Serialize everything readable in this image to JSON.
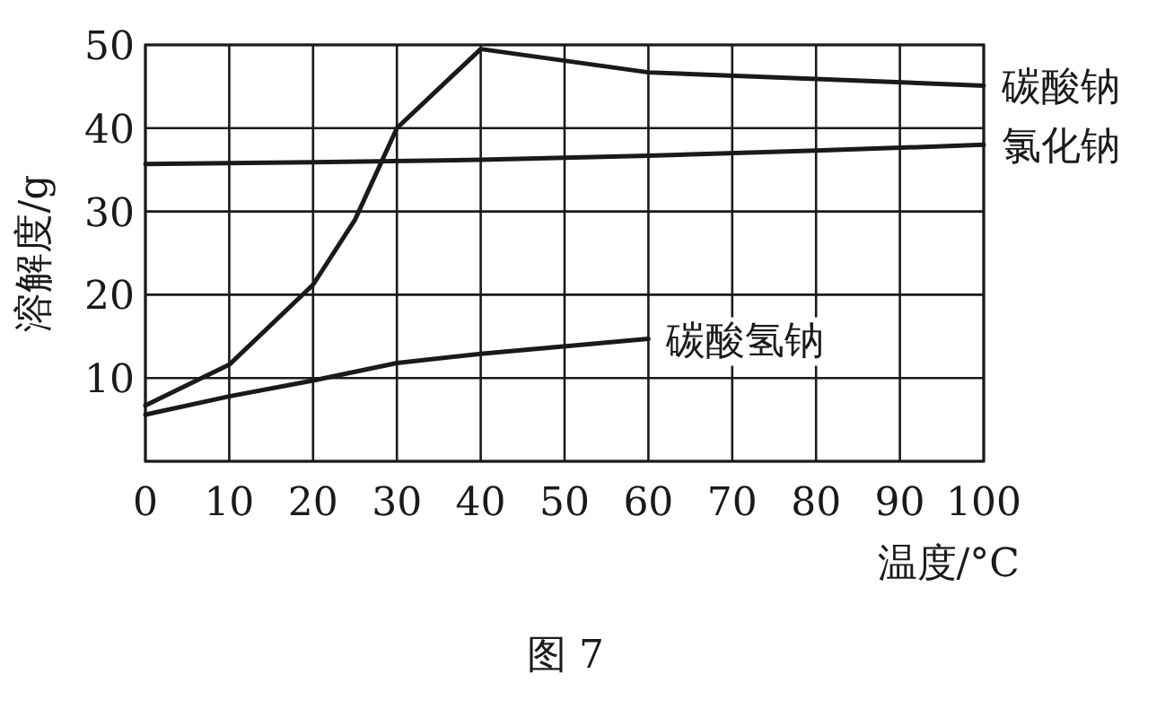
{
  "chart_data": {
    "type": "line",
    "xlabel": "温度/°C",
    "ylabel": "溶解度/g",
    "annotations": [
      "图 7"
    ],
    "xlim": [
      0,
      100
    ],
    "xticks": [
      0,
      10,
      20,
      30,
      40,
      50,
      60,
      70,
      80,
      90,
      100
    ],
    "ylim": [
      0,
      50
    ],
    "yticks": [
      {
        "value": 0,
        "label": null
      },
      10,
      20,
      30,
      40,
      50
    ],
    "grid": true,
    "marker": "none",
    "line_style": "solid",
    "series": [
      {
        "name": "碳酸钠",
        "color": "#1a1a1a",
        "x": [
          0,
          10,
          20,
          25,
          30,
          40,
          60,
          100
        ],
        "values": [
          6.7,
          11.6,
          21.2,
          29,
          40,
          49.5,
          46.7,
          45.1
        ]
      },
      {
        "name": "氯化钠",
        "color": "#1a1a1a",
        "x": [
          0,
          20,
          40,
          60,
          80,
          100
        ],
        "values": [
          35.7,
          35.9,
          36.2,
          36.7,
          37.3,
          38.0
        ]
      },
      {
        "name": "碳酸氢钠",
        "color": "#1a1a1a",
        "x": [
          0,
          10,
          20,
          30,
          40,
          60
        ],
        "values": [
          5.6,
          7.8,
          9.7,
          11.8,
          12.9,
          14.7
        ]
      }
    ]
  }
}
